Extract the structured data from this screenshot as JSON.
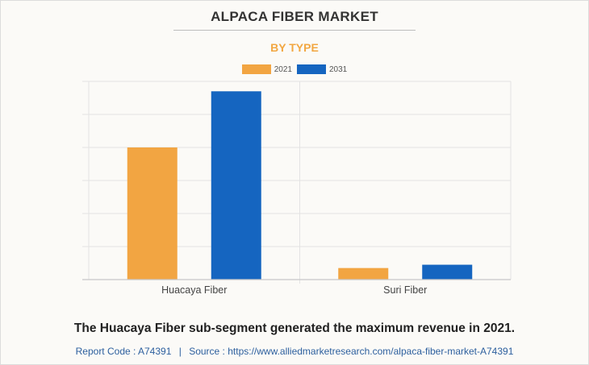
{
  "title": "ALPACA FIBER MARKET",
  "subtitle": "BY TYPE",
  "legend": [
    {
      "label": "2021",
      "color": "#f2a542"
    },
    {
      "label": "2031",
      "color": "#1565c0"
    }
  ],
  "chart_data": {
    "type": "bar",
    "categories": [
      "Huacaya Fiber",
      "Suri Fiber"
    ],
    "series": [
      {
        "name": "2021",
        "color": "#f2a542",
        "values": [
          4.0,
          0.35
        ]
      },
      {
        "name": "2031",
        "color": "#1565c0",
        "values": [
          5.7,
          0.45
        ]
      }
    ],
    "ylim": [
      0,
      6
    ],
    "grid": true,
    "legend_position": "top-center",
    "xlabel": "",
    "ylabel": ""
  },
  "footer": {
    "note": "The Huacaya Fiber sub-segment generated the maximum revenue in 2021.",
    "report_code": "Report Code : A74391",
    "separator": "|",
    "source": "Source : https://www.alliedmarketresearch.com/alpaca-fiber-market-A74391"
  }
}
